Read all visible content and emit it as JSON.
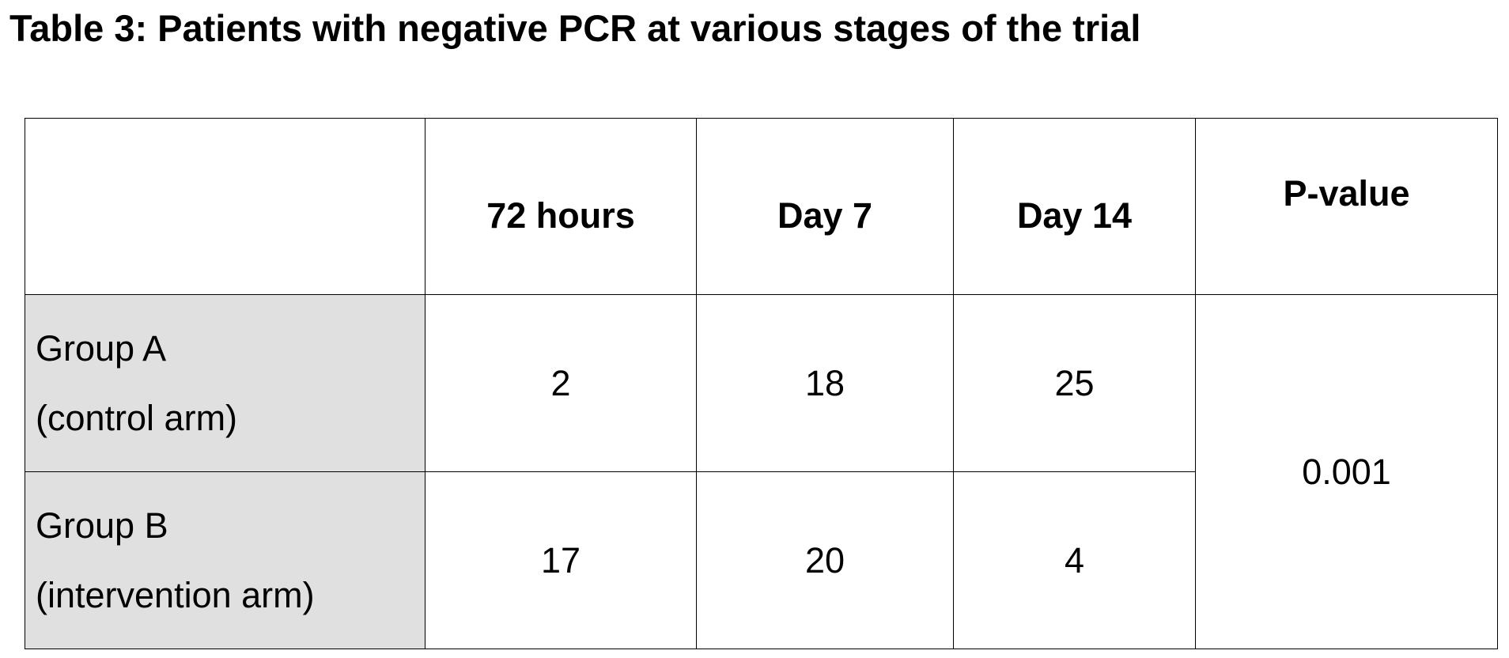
{
  "title": "Table 3: Patients with negative PCR at various stages of the trial",
  "table": {
    "corner": "",
    "columns": [
      "72 hours",
      "Day 7",
      "Day 14",
      "P-value"
    ],
    "rows": [
      {
        "label_line1": "Group A",
        "label_line2": "(control arm)",
        "values": [
          "2",
          "18",
          "25"
        ]
      },
      {
        "label_line1": "Group B",
        "label_line2": "(intervention arm)",
        "values": [
          "17",
          "20",
          "4"
        ]
      }
    ],
    "p_value": "0.001"
  }
}
